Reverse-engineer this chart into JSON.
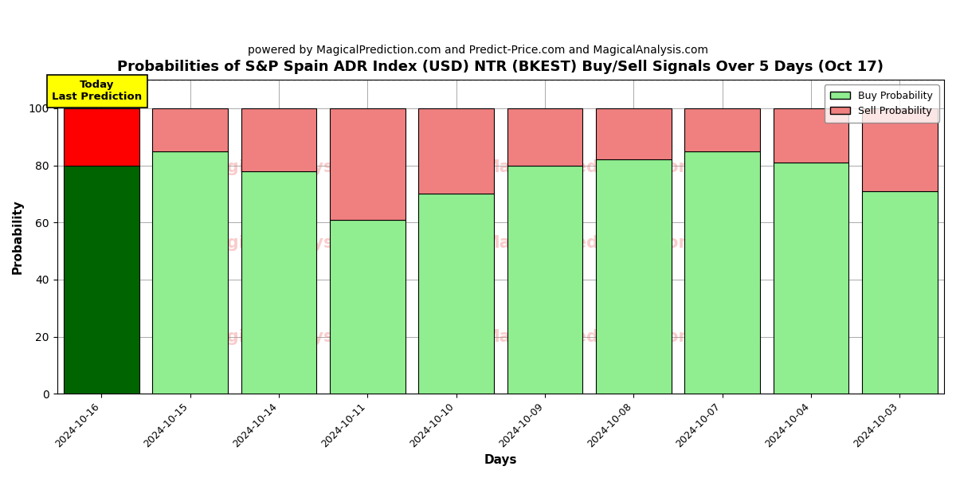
{
  "title": "Probabilities of S&P Spain ADR Index (USD) NTR (BKEST) Buy/Sell Signals Over 5 Days (Oct 17)",
  "subtitle": "powered by MagicalPrediction.com and Predict-Price.com and MagicalAnalysis.com",
  "xlabel": "Days",
  "ylabel": "Probability",
  "categories": [
    "2024-10-16",
    "2024-10-15",
    "2024-10-14",
    "2024-10-11",
    "2024-10-10",
    "2024-10-09",
    "2024-10-08",
    "2024-10-07",
    "2024-10-04",
    "2024-10-03"
  ],
  "buy_values": [
    80,
    85,
    78,
    61,
    70,
    80,
    82,
    85,
    81,
    71
  ],
  "sell_values": [
    20,
    15,
    22,
    39,
    30,
    20,
    18,
    15,
    19,
    29
  ],
  "today_index": 0,
  "today_buy_color": "#006400",
  "today_sell_color": "#FF0000",
  "buy_color": "#90EE90",
  "sell_color": "#F08080",
  "today_label_bg": "#FFFF00",
  "today_label_text": "Today\nLast Prediction",
  "ylim": [
    0,
    110
  ],
  "yticks": [
    0,
    20,
    40,
    60,
    80,
    100
  ],
  "dashed_line_y": 110,
  "legend_buy": "Buy Probability",
  "legend_sell": "Sell Probability",
  "bar_edge_color": "#000000",
  "bar_width": 0.85,
  "background_color": "#ffffff",
  "grid_color": "#aaaaaa",
  "title_fontsize": 13,
  "subtitle_fontsize": 10
}
